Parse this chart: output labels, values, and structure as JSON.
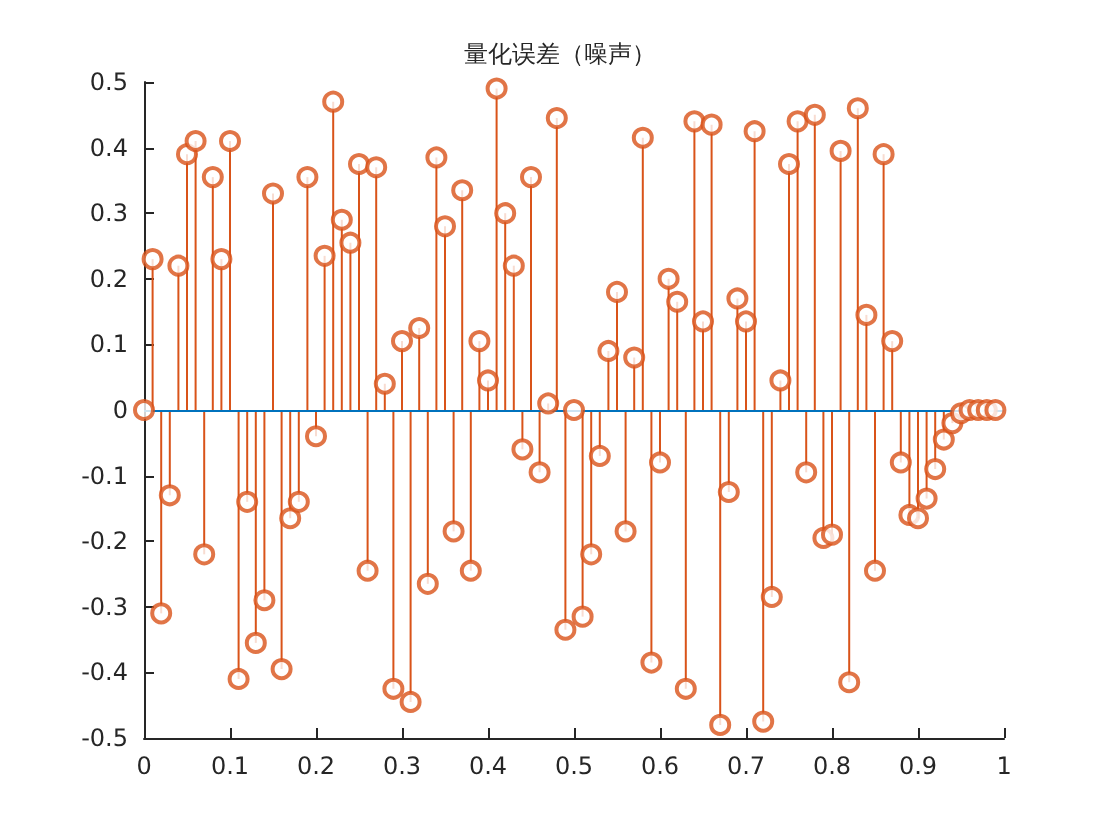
{
  "chart_data": {
    "type": "lollipop",
    "title": "量化误差（噪声）",
    "x": [
      0,
      0.01,
      0.02,
      0.03,
      0.04,
      0.05,
      0.06,
      0.07,
      0.08,
      0.09,
      0.1,
      0.11,
      0.12,
      0.13,
      0.14,
      0.15,
      0.16,
      0.17,
      0.18,
      0.19,
      0.2,
      0.21,
      0.22,
      0.23,
      0.24,
      0.25,
      0.26,
      0.27,
      0.28,
      0.29,
      0.3,
      0.31,
      0.32,
      0.33,
      0.34,
      0.35,
      0.36,
      0.37,
      0.38,
      0.39,
      0.4,
      0.41,
      0.42,
      0.43,
      0.44,
      0.45,
      0.46,
      0.47,
      0.48,
      0.49,
      0.5,
      0.51,
      0.52,
      0.53,
      0.54,
      0.55,
      0.56,
      0.57,
      0.58,
      0.59,
      0.6,
      0.61,
      0.62,
      0.63,
      0.64,
      0.65,
      0.66,
      0.67,
      0.68,
      0.69,
      0.7,
      0.71,
      0.72,
      0.73,
      0.74,
      0.75,
      0.76,
      0.77,
      0.78,
      0.79,
      0.8,
      0.81,
      0.82,
      0.83,
      0.84,
      0.85,
      0.86,
      0.87,
      0.88,
      0.89,
      0.9,
      0.91,
      0.92,
      0.93,
      0.94,
      0.95,
      0.96,
      0.97,
      0.98,
      0.99
    ],
    "series": [
      {
        "color": "#d95319",
        "values": [
          0,
          0.23,
          -0.31,
          -0.13,
          0.22,
          0.39,
          0.41,
          -0.22,
          0.355,
          0.23,
          0.41,
          -0.41,
          -0.14,
          -0.355,
          -0.29,
          0.33,
          -0.395,
          -0.165,
          -0.14,
          0.355,
          -0.04,
          0.235,
          0.47,
          0.29,
          0.255,
          0.375,
          -0.245,
          0.37,
          0.04,
          -0.425,
          0.105,
          -0.445,
          0.125,
          -0.265,
          0.385,
          0.28,
          -0.185,
          0.335,
          -0.245,
          0.105,
          0.045,
          0.49,
          0.3,
          0.22,
          -0.06,
          0.355,
          -0.095,
          0.01,
          0.445,
          -0.335,
          0,
          -0.315,
          -0.22,
          -0.07,
          0.09,
          0.18,
          -0.185,
          0.08,
          0.415,
          -0.385,
          -0.08,
          0.2,
          0.165,
          -0.425,
          0.44,
          0.135,
          0.435,
          -0.48,
          -0.125,
          0.17,
          0.135,
          0.425,
          -0.475,
          -0.285,
          0.045,
          0.375,
          0.44,
          -0.095,
          0.45,
          -0.195,
          -0.19,
          0.395,
          -0.415,
          0.46,
          0.145,
          -0.245,
          0.39,
          0.105,
          -0.08,
          -0.16,
          -0.165,
          -0.135,
          -0.09,
          -0.045,
          -0.02,
          -0.005,
          0,
          0,
          0,
          0
        ]
      }
    ],
    "xlim": [
      0,
      1
    ],
    "xticks": [
      0,
      0.1,
      0.2,
      0.3,
      0.4,
      0.5,
      0.6,
      0.7,
      0.8,
      0.9,
      1
    ],
    "ylim": [
      -0.5,
      0.5
    ],
    "yticks": [
      -0.5,
      -0.4,
      -0.3,
      -0.2,
      -0.1,
      0,
      0.1,
      0.2,
      0.3,
      0.4,
      0.5
    ],
    "ref_lines": [
      {
        "axis": "y",
        "value": 0,
        "color": "#0072bd"
      }
    ],
    "marker": "circle"
  }
}
